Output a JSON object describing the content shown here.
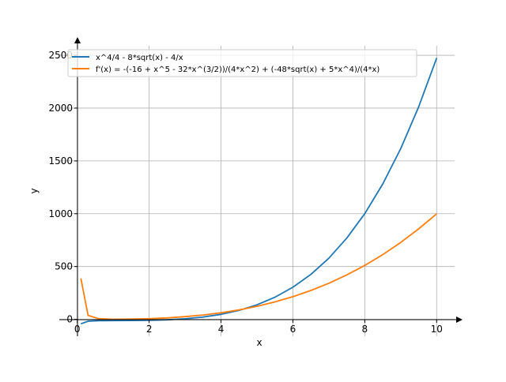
{
  "chart_data": {
    "type": "line",
    "title": "",
    "xlabel": "x",
    "ylabel": "y",
    "xlim": [
      -0.5,
      10.5
    ],
    "ylim": [
      -160,
      2590
    ],
    "grid": true,
    "legend_position": "top-left",
    "xticks": [
      0,
      2,
      4,
      6,
      8,
      10
    ],
    "xtick_labels": [
      "0",
      "2",
      "4",
      "6",
      "8",
      "10"
    ],
    "yticks": [
      0,
      500,
      1000,
      1500,
      2000,
      2500
    ],
    "ytick_labels": [
      "0",
      "500",
      "1000",
      "1500",
      "2000",
      "2500"
    ],
    "x": [
      0.1,
      0.3,
      0.6,
      1,
      1.5,
      2,
      2.5,
      3,
      3.5,
      4,
      4.5,
      5,
      5.5,
      6,
      6.5,
      7,
      7.5,
      8,
      8.5,
      9,
      9.5,
      10
    ],
    "series": [
      {
        "name": "x^4/4 - 8*sqrt(x) - 4/x",
        "color": "#1f77b4",
        "values": [
          -42.5,
          -17.7,
          -12.8,
          -11.75,
          -11.2,
          -9.3,
          -4.5,
          5.1,
          21.4,
          47,
          84.7,
          137.6,
          209.3,
          303.7,
          425.3,
          578.5,
          768.6,
          1000.9,
          1281.2,
          1615.8,
          2011.2,
          2474.3
        ]
      },
      {
        "name": "f'(x) = -(-16 + x^5 - 32*x^(3/2))/(4*x^2) + (-48*sqrt(x) + 5*x^4)/(4*x)",
        "color": "#ff7f0e",
        "values": [
          387.4,
          37.2,
          6.2,
          1,
          1.9,
          6.2,
          13.7,
          25.1,
          41.1,
          62.3,
          89.4,
          123.4,
          164.8,
          214.5,
          273.1,
          341.6,
          420.5,
          510.6,
          612.8,
          727.7,
          856.1,
          998.8
        ]
      }
    ]
  }
}
